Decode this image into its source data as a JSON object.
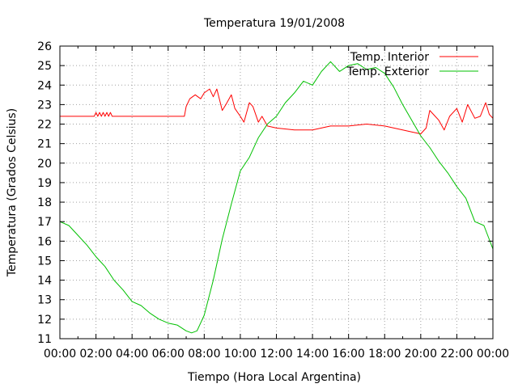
{
  "chart_data": {
    "type": "line",
    "title": "Temperatura 19/01/2008",
    "xlabel": "Tiempo (Hora Local Argentina)",
    "ylabel": "Temperatura (Grados Celsius)",
    "xlim": [
      "00:00",
      "24:00"
    ],
    "ylim": [
      11,
      26
    ],
    "grid": true,
    "legend_position": "top-right",
    "x_tick_labels": [
      "00:00",
      "02:00",
      "04:00",
      "06:00",
      "08:00",
      "10:00",
      "12:00",
      "14:00",
      "16:00",
      "18:00",
      "20:00",
      "22:00",
      "00:00"
    ],
    "y_tick_labels": [
      "11",
      "12",
      "13",
      "14",
      "15",
      "16",
      "17",
      "18",
      "19",
      "20",
      "21",
      "22",
      "23",
      "24",
      "25",
      "26"
    ],
    "series": [
      {
        "name": "Temp. Interior",
        "color": "#ff0000",
        "x_hours": [
          0,
          1.9,
          2.0,
          2.1,
          2.2,
          2.3,
          2.4,
          2.5,
          2.6,
          2.7,
          2.8,
          2.9,
          3.0,
          5.0,
          6.9,
          7.0,
          7.2,
          7.5,
          7.8,
          8.0,
          8.3,
          8.5,
          8.7,
          9.0,
          9.2,
          9.5,
          9.7,
          10.0,
          10.2,
          10.5,
          10.7,
          11.0,
          11.2,
          11.5,
          12.0,
          13.0,
          14.0,
          15.0,
          16.0,
          17.0,
          18.0,
          19.0,
          19.5,
          20.0,
          20.3,
          20.5,
          20.8,
          21.0,
          21.3,
          21.6,
          22.0,
          22.3,
          22.6,
          23.0,
          23.3,
          23.6,
          23.8,
          24.0
        ],
        "values": [
          22.4,
          22.4,
          22.6,
          22.4,
          22.6,
          22.4,
          22.6,
          22.4,
          22.6,
          22.4,
          22.6,
          22.4,
          22.4,
          22.4,
          22.4,
          22.9,
          23.3,
          23.5,
          23.3,
          23.6,
          23.8,
          23.4,
          23.8,
          22.7,
          23.0,
          23.5,
          22.8,
          22.4,
          22.1,
          23.1,
          22.9,
          22.1,
          22.4,
          21.9,
          21.8,
          21.7,
          21.7,
          21.9,
          21.9,
          22.0,
          21.9,
          21.7,
          21.6,
          21.5,
          21.8,
          22.7,
          22.4,
          22.2,
          21.7,
          22.4,
          22.8,
          22.1,
          23.0,
          22.3,
          22.4,
          23.1,
          22.5,
          22.3
        ]
      },
      {
        "name": "Temp. Exterior",
        "color": "#00c000",
        "x_hours": [
          0,
          0.5,
          1.0,
          1.5,
          2.0,
          2.5,
          3.0,
          3.5,
          4.0,
          4.5,
          5.0,
          5.5,
          6.0,
          6.5,
          7.0,
          7.3,
          7.6,
          8.0,
          8.5,
          9.0,
          9.5,
          10.0,
          10.5,
          11.0,
          11.5,
          12.0,
          12.5,
          13.0,
          13.5,
          14.0,
          14.5,
          15.0,
          15.5,
          16.0,
          16.5,
          17.0,
          17.5,
          18.0,
          18.5,
          19.0,
          19.5,
          20.0,
          20.5,
          21.0,
          21.5,
          22.0,
          22.5,
          23.0,
          23.5,
          24.0
        ],
        "values": [
          17.0,
          16.8,
          16.3,
          15.8,
          15.2,
          14.7,
          14.0,
          13.5,
          12.9,
          12.7,
          12.3,
          12.0,
          11.8,
          11.7,
          11.4,
          11.3,
          11.4,
          12.2,
          14.0,
          16.1,
          17.9,
          19.6,
          20.3,
          21.3,
          22.0,
          22.4,
          23.1,
          23.6,
          24.2,
          24.0,
          24.7,
          25.2,
          24.7,
          25.0,
          25.1,
          24.8,
          24.9,
          24.6,
          23.9,
          23.0,
          22.2,
          21.4,
          20.8,
          20.1,
          19.5,
          18.8,
          18.2,
          17.0,
          16.8,
          15.6
        ]
      }
    ]
  }
}
